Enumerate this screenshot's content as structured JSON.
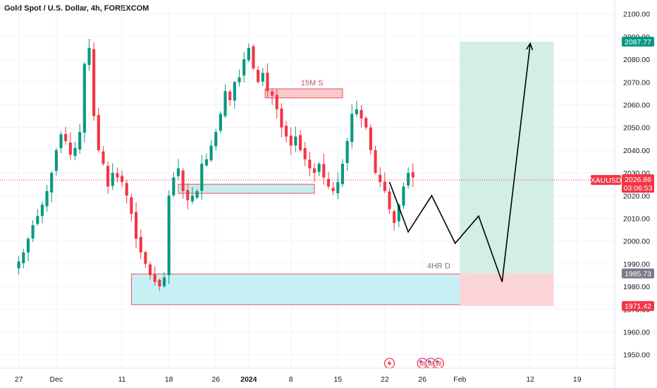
{
  "title": "Gold Spot / U.S. Dollar, 4h, FOREXCOM",
  "chart_data": {
    "type": "candlestick",
    "symbol": "XAUUSD",
    "timeframe": "4h",
    "ylim": [
      1944,
      2103
    ],
    "xlim": [
      -4,
      127
    ],
    "y_ticks": [
      2100,
      2090,
      2080,
      2070,
      2060,
      2050,
      2040,
      2030,
      2020,
      2010,
      2000,
      1990,
      1980,
      1970,
      1960,
      1950
    ],
    "x_ticks": [
      {
        "i": 0,
        "label": "27"
      },
      {
        "i": 8,
        "label": "Dec"
      },
      {
        "i": 22,
        "label": "11"
      },
      {
        "i": 32,
        "label": "18"
      },
      {
        "i": 42,
        "label": "26"
      },
      {
        "i": 49,
        "label": "2024"
      },
      {
        "i": 58,
        "label": "8"
      },
      {
        "i": 68,
        "label": "15"
      },
      {
        "i": 78,
        "label": "22"
      },
      {
        "i": 86,
        "label": "26"
      },
      {
        "i": 94,
        "label": "Feb"
      },
      {
        "i": 109,
        "label": "12"
      },
      {
        "i": 119,
        "label": "19"
      }
    ],
    "closes": [
      1991,
      1995,
      2001,
      2007,
      2011,
      2016,
      2022,
      2030,
      2040,
      2047,
      2044,
      2038,
      2041,
      2048,
      2078,
      2085,
      2055,
      2040,
      2034,
      2024,
      2030,
      2028,
      2026,
      2020,
      2012,
      2001,
      1995,
      1990,
      1985,
      1982,
      1980,
      1984,
      2020,
      2028,
      2032,
      2022,
      2018,
      2020,
      2022,
      2034,
      2036,
      2042,
      2048,
      2056,
      2066,
      2062,
      2070,
      2072,
      2080,
      2085,
      2076,
      2070,
      2074,
      2066,
      2064,
      2058,
      2050,
      2046,
      2042,
      2046,
      2040,
      2036,
      2032,
      2030,
      2034,
      2028,
      2024,
      2022,
      2026,
      2034,
      2044,
      2056,
      2058,
      2054,
      2050,
      2040,
      2030,
      2026,
      2022,
      2014,
      2008,
      2016,
      2024,
      2030,
      2028
    ],
    "current_price": {
      "label": "XAUUSD",
      "price": "2026.86",
      "countdown": "03:06:53",
      "value": 2026.86
    },
    "price_tags": [
      {
        "value": 2087.77,
        "text": "2087.77",
        "color": "#089981"
      },
      {
        "value": 1985.73,
        "text": "1985.73",
        "color": "#787b86"
      },
      {
        "value": 1971.42,
        "text": "1971.42",
        "color": "#f23645"
      }
    ],
    "zones": [
      {
        "name": "supply-15m",
        "x0": 52.5,
        "x1": 69,
        "y0": 2063,
        "y1": 2067,
        "fill": "#f8c9cd",
        "stroke": "#e0575f"
      },
      {
        "name": "demand-small",
        "x0": 34,
        "x1": 63,
        "y0": 2021,
        "y1": 2025,
        "fill": "#c9ecec",
        "stroke": "#e0575f"
      },
      {
        "name": "demand-4h",
        "x0": 24,
        "x1": 96,
        "y0": 1972,
        "y1": 1985.5,
        "fill": "#c8eff3",
        "stroke": "#e0575f"
      },
      {
        "name": "target-profit",
        "x0": 94,
        "x1": 114,
        "y0": 1985.73,
        "y1": 2087.77,
        "fill": "#d3eee5",
        "stroke": "none"
      },
      {
        "name": "stop-loss",
        "x0": 94,
        "x1": 114,
        "y0": 1971.42,
        "y1": 1985.73,
        "fill": "#fbd4d8",
        "stroke": "none"
      }
    ],
    "annotations": [
      {
        "text": "15M S",
        "i": 62.5,
        "y": 2068.5,
        "color": "#c2576a"
      },
      {
        "text": "4HR D",
        "i": 89.5,
        "y": 1988,
        "color": "#787b86"
      }
    ],
    "projection_path": [
      [
        79,
        2026
      ],
      [
        83,
        2004
      ],
      [
        88,
        2020
      ],
      [
        93,
        1999
      ],
      [
        98,
        2011
      ],
      [
        103,
        1982
      ],
      [
        109,
        2087
      ]
    ],
    "events": [
      {
        "i": 79,
        "icon": "lightning-icon",
        "color": "#f23645"
      },
      {
        "i": 86,
        "icon": "us-flag-icon",
        "color": "#f23645"
      },
      {
        "i": 87.8,
        "icon": "us-flag-icon",
        "color": "#f23645"
      },
      {
        "i": 89.5,
        "icon": "us-flag-icon",
        "color": "#f23645"
      }
    ],
    "colors": {
      "up": "#089981",
      "down": "#f23645",
      "grid": "#f0f3fa",
      "axis_text": "#131722"
    },
    "grid": true
  }
}
